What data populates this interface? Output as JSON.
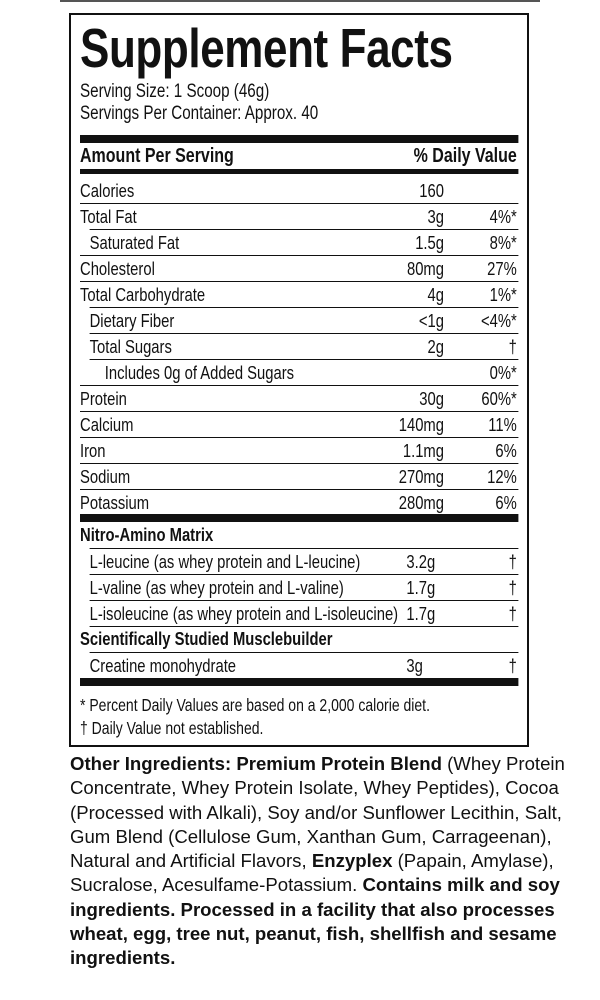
{
  "title": "Supplement Facts",
  "serving_size": "Serving Size: 1 Scoop (46g)",
  "servings_per_container": "Servings Per Container: Approx. 40",
  "header": {
    "amount": "Amount Per Serving",
    "dv": "% Daily Value"
  },
  "nutrients": [
    {
      "name": "Calories",
      "amount": "160",
      "dv": "",
      "indent": 0
    },
    {
      "name": "Total Fat",
      "amount": "3g",
      "dv": "4%*",
      "indent": 0
    },
    {
      "name": "Saturated Fat",
      "amount": "1.5g",
      "dv": "8%*",
      "indent": 1
    },
    {
      "name": "Cholesterol",
      "amount": "80mg",
      "dv": "27%",
      "indent": 0
    },
    {
      "name": "Total Carbohydrate",
      "amount": "4g",
      "dv": "1%*",
      "indent": 0
    },
    {
      "name": "Dietary Fiber",
      "amount": "<1g",
      "dv": "<4%*",
      "indent": 1
    },
    {
      "name": "Total Sugars",
      "amount": "2g",
      "dv": "†",
      "indent": 1
    },
    {
      "name": "Includes 0g of Added Sugars",
      "amount": "",
      "dv": "0%*",
      "indent": 2
    },
    {
      "name": "Protein",
      "amount": "30g",
      "dv": "60%*",
      "indent": 0
    },
    {
      "name": "Calcium",
      "amount": "140mg",
      "dv": "11%",
      "indent": 0
    },
    {
      "name": "Iron",
      "amount": "1.1mg",
      "dv": "6%",
      "indent": 0
    },
    {
      "name": "Sodium",
      "amount": "270mg",
      "dv": "12%",
      "indent": 0
    },
    {
      "name": "Potassium",
      "amount": "280mg",
      "dv": "6%",
      "indent": 0
    }
  ],
  "sections": [
    {
      "title": "Nitro-Amino Matrix",
      "items": [
        {
          "name": "L-leucine (as whey protein and L-leucine)",
          "amount": "3.2g",
          "dv": "†"
        },
        {
          "name": "L-valine (as whey protein and L-valine)",
          "amount": "1.7g",
          "dv": "†"
        },
        {
          "name": "L-isoleucine (as whey protein and L-isoleucine)",
          "amount": "1.7g",
          "dv": "†"
        }
      ]
    },
    {
      "title": "Scientifically Studied Musclebuilder",
      "items": [
        {
          "name": "Creatine monohydrate",
          "amount": "3g",
          "dv": "†"
        }
      ]
    }
  ],
  "footnotes": [
    "* Percent Daily Values are based on a 2,000 calorie diet.",
    "† Daily Value not established."
  ],
  "other_ingredients": [
    {
      "text": "Other Ingredients: Premium Protein Blend",
      "bold": true
    },
    {
      "text": " (Whey Protein Concentrate, Whey Protein Isolate, Whey Peptides), Cocoa (Processed with Alkali), Soy and/or Sunflower Lecithin, Salt, Gum Blend (Cellulose Gum, Xanthan Gum, Carrageenan), Natural and Artificial Flavors, ",
      "bold": false
    },
    {
      "text": "Enzyplex",
      "bold": true
    },
    {
      "text": " (Papain, Amylase), Sucralose, Acesulfame-Potassium. ",
      "bold": false
    },
    {
      "text": "Contains milk and soy ingredients. Processed in a facility that also processes wheat, egg, tree nut, peanut, fish, shellfish and sesame ingredients.",
      "bold": true
    }
  ]
}
